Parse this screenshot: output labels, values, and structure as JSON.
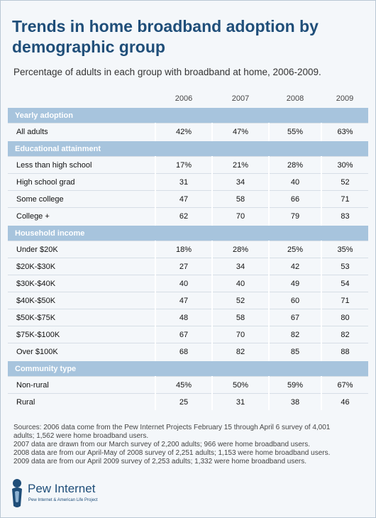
{
  "header": {
    "title": "Trends in home broadband adoption by demographic group",
    "subtitle": "Percentage of adults in each group with broadband at home, 2006-2009."
  },
  "table": {
    "columns": [
      "2006",
      "2007",
      "2008",
      "2009"
    ],
    "sections": [
      {
        "title": "Yearly adoption",
        "rows": [
          [
            "All adults",
            "42%",
            "47%",
            "55%",
            "63%"
          ]
        ]
      },
      {
        "title": "Educational attainment",
        "rows": [
          [
            "Less than high school",
            "17%",
            "21%",
            "28%",
            "30%"
          ],
          [
            "High school grad",
            "31",
            "34",
            "40",
            "52"
          ],
          [
            "Some college",
            "47",
            "58",
            "66",
            "71"
          ],
          [
            "College +",
            "62",
            "70",
            "79",
            "83"
          ]
        ]
      },
      {
        "title": "Household income",
        "rows": [
          [
            "Under $20K",
            "18%",
            "28%",
            "25%",
            "35%"
          ],
          [
            "$20K-$30K",
            "27",
            "34",
            "42",
            "53"
          ],
          [
            "$30K-$40K",
            "40",
            "40",
            "49",
            "54"
          ],
          [
            "$40K-$50K",
            "47",
            "52",
            "60",
            "71"
          ],
          [
            "$50K-$75K",
            "48",
            "58",
            "67",
            "80"
          ],
          [
            "$75K-$100K",
            "67",
            "70",
            "82",
            "82"
          ],
          [
            "Over $100K",
            "68",
            "82",
            "85",
            "88"
          ]
        ]
      },
      {
        "title": "Community type",
        "rows": [
          [
            "Non-rural",
            "45%",
            "50%",
            "59%",
            "67%"
          ],
          [
            "Rural",
            "25",
            "31",
            "38",
            "46"
          ]
        ]
      }
    ]
  },
  "notes": [
    "Sources: 2006 data come from the Pew Internet Projects February 15 through April 6 survey of 4,001 adults; 1,562 were home broadband users.",
    "2007 data are drawn from our March survey of 2,200 adults; 966 were home broadband users.",
    "2008 data are from our April-May of 2008 survey of 2,251 adults; 1,153 were home broadband users.",
    "2009 data are from our April 2009 survey of 2,253 adults; 1,332 were home broadband users."
  ],
  "logo": {
    "name": "Pew Internet",
    "tagline": "Pew Internet & American Life Project"
  }
}
